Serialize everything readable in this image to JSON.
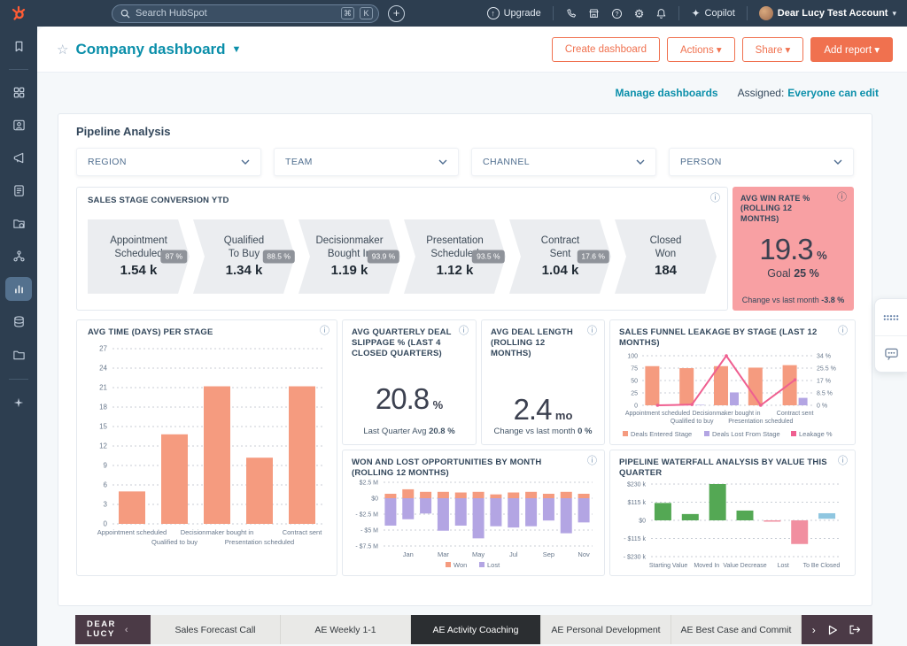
{
  "colors": {
    "accent_orange": "#f0714f",
    "teal": "#0b8faa",
    "navy": "#2d3e50",
    "text_dark": "#33475b",
    "salmon": "#f59b7f",
    "purple": "#b3a5e3",
    "pink_line": "#ef5f90",
    "green": "#54a854",
    "red": "#f18fa0",
    "blue": "#8fc6e0",
    "pink_card": "#f8a0a3"
  },
  "topbar": {
    "search_placeholder": "Search HubSpot",
    "shortcut_keys": [
      "⌘",
      "K"
    ],
    "upgrade_label": "Upgrade",
    "copilot_label": "Copilot",
    "account_label": "Dear Lucy Test Account"
  },
  "header": {
    "title": "Company dashboard",
    "create_label": "Create dashboard",
    "actions_label": "Actions",
    "share_label": "Share",
    "add_report_label": "Add report"
  },
  "subheader": {
    "manage_link": "Manage dashboards",
    "assigned_label": "Assigned:",
    "assigned_value": "Everyone can edit"
  },
  "panel": {
    "title": "Pipeline Analysis",
    "filters": [
      "REGION",
      "TEAM",
      "CHANNEL",
      "PERSON"
    ]
  },
  "funnel": {
    "title": "SALES STAGE CONVERSION YTD",
    "stages": [
      {
        "line1": "Appointment",
        "line2": "Scheduled",
        "value": "1.54 k"
      },
      {
        "line1": "Qualified",
        "line2": "To Buy",
        "value": "1.34 k"
      },
      {
        "line1": "Decisionmaker",
        "line2": "Bought In",
        "value": "1.19 k"
      },
      {
        "line1": "Presentation",
        "line2": "Scheduled",
        "value": "1.12 k"
      },
      {
        "line1": "Contract",
        "line2": "Sent",
        "value": "1.04 k"
      },
      {
        "line1": "Closed",
        "line2": "Won",
        "value": "184"
      }
    ],
    "conversion_badges": [
      "87 %",
      "88.5 %",
      "93.9 %",
      "93.5 %",
      "17.6 %"
    ]
  },
  "win_rate_card": {
    "title": "AVG WIN RATE % (ROLLING 12 MONTHS)",
    "value": "19.3",
    "unit": "%",
    "goal_label": "Goal",
    "goal_value": "25 %",
    "change_label": "Change vs last month",
    "change_value": "-3.8 %"
  },
  "kpi_cards": [
    {
      "title": "AVG QUARTERLY DEAL SLIPPAGE % (LAST 4 CLOSED QUARTERS)",
      "value": "20.8",
      "unit": "%",
      "footer_label": "Last Quarter Avg",
      "footer_value": "20.8 %"
    },
    {
      "title": "AVG DEAL LENGTH (ROLLING 12 MONTHS)",
      "value": "2.4",
      "unit": "mo",
      "footer_label": "Change vs last month",
      "footer_value": "0 %"
    }
  ],
  "chart_data": [
    {
      "id": "avg-time-chart",
      "type": "bar",
      "title": "AVG TIME (DAYS) PER STAGE",
      "categories": [
        "Appointment scheduled",
        "Qualified to buy",
        "Decisionmaker bought in",
        "Presentation scheduled",
        "Contract sent"
      ],
      "values": [
        5,
        13.8,
        21.2,
        10.2,
        21.2
      ],
      "ylim": [
        0,
        27
      ],
      "yticks": [
        0,
        3,
        6,
        9,
        12,
        15,
        18,
        21,
        24,
        27
      ],
      "bar_color": "#f59b7f",
      "grid": true
    },
    {
      "id": "leakage-chart",
      "type": "bar+line",
      "title": "SALES FUNNEL LEAKAGE BY STAGE (LAST 12 MONTHS)",
      "categories": [
        "Appointment scheduled",
        "Qualified to buy",
        "Decisionmaker bought in",
        "Presentation scheduled",
        "Contract sent"
      ],
      "series": [
        {
          "name": "Deals Entered Stage",
          "values": [
            79,
            75,
            79,
            76,
            81
          ],
          "color": "#f59b7f"
        },
        {
          "name": "Deals Lost From Stage",
          "values": [
            0,
            1,
            26,
            0,
            15
          ],
          "color": "#b3a5e3"
        }
      ],
      "line": {
        "name": "Leakage %",
        "values": [
          0,
          0.5,
          34,
          0,
          17.5
        ],
        "color": "#ef5f90",
        "axis": "right"
      },
      "ylim_left": [
        0,
        100
      ],
      "yticks_left": [
        0,
        25,
        50,
        75,
        100
      ],
      "ylim_right": [
        0,
        34
      ],
      "yticks_right": [
        "0 %",
        "8.5 %",
        "17 %",
        "25.5 %",
        "34 %"
      ],
      "legend_position": "bottom",
      "grid": true
    },
    {
      "id": "wonlost-chart",
      "type": "stacked-bar",
      "title": "WON AND LOST OPPORTUNITIES BY MONTH (ROLLING 12 MONTHS)",
      "x_count": 12,
      "x_labels": [
        "Jan",
        "Mar",
        "May",
        "Jul",
        "Sep",
        "Nov"
      ],
      "x_label_indices": [
        1,
        3,
        5,
        7,
        9,
        11
      ],
      "series": [
        {
          "name": "Won",
          "values": [
            0.7,
            1.4,
            1.0,
            1.0,
            0.9,
            1.0,
            0.6,
            0.9,
            1.0,
            0.7,
            1.0,
            0.7
          ],
          "color": "#f59b7f"
        },
        {
          "name": "Lost",
          "values": [
            -4.3,
            -3.3,
            -2.4,
            -5.1,
            -4.3,
            -6.3,
            -4.4,
            -4.6,
            -4.4,
            -3.5,
            -5.5,
            -3.8
          ],
          "color": "#b3a5e3"
        }
      ],
      "unit": "$M",
      "ylim": [
        -7.5,
        2.5
      ],
      "yticks": [
        2.5,
        0,
        -2.5,
        -5,
        -7.5
      ],
      "ytick_labels": [
        "$2.5 M",
        "$0",
        "- $2.5 M",
        "- $5 M",
        "- $7.5 M"
      ],
      "legend_position": "bottom",
      "grid": true
    },
    {
      "id": "waterfall-chart",
      "type": "waterfall",
      "title": "PIPELINE WATERFALL ANALYSIS BY VALUE THIS QUARTER",
      "x_labels": [
        "Starting Value",
        "Moved In",
        "Value Decrease",
        "Lost",
        "To Be Closed"
      ],
      "bars": [
        {
          "from": 0,
          "to": 110,
          "color": "#54a854"
        },
        {
          "from": 0,
          "to": 40,
          "color": "#54a854"
        },
        {
          "from": 0,
          "to": 230,
          "color": "#54a854"
        },
        {
          "from": 0,
          "to": 62,
          "color": "#54a854"
        },
        {
          "from": 0,
          "to": -8,
          "color": "#f18fa0"
        },
        {
          "from": 0,
          "to": -150,
          "color": "#f18fa0"
        },
        {
          "from": 10,
          "to": 45,
          "color": "#8fc6e0"
        }
      ],
      "unit": "$k",
      "ylim": [
        -230,
        230
      ],
      "yticks": [
        230,
        115,
        0,
        -115,
        -230
      ],
      "ytick_labels": [
        "$230 k",
        "$115 k",
        "$0",
        "- $115 k",
        "- $230 k"
      ],
      "grid": true
    }
  ],
  "bottom_bar": {
    "logo_line1": "DEAR",
    "logo_line2": "LUCY",
    "tabs": [
      {
        "label": "Sales Forecast Call",
        "active": false
      },
      {
        "label": "AE Weekly 1-1",
        "active": false
      },
      {
        "label": "AE Activity Coaching",
        "active": true
      },
      {
        "label": "AE Personal Development",
        "active": false
      },
      {
        "label": "AE Best Case and Commit",
        "active": false
      }
    ]
  }
}
